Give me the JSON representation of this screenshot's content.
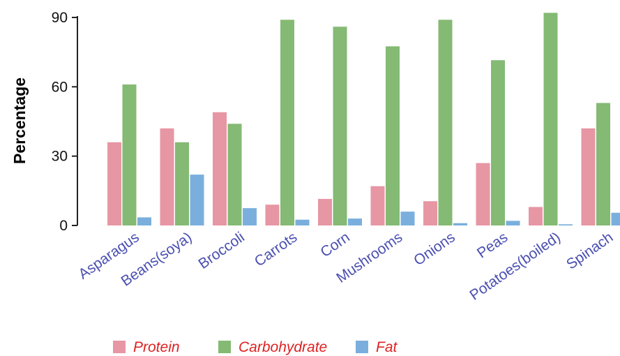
{
  "chart_data": {
    "type": "bar",
    "ylabel": "Percentage",
    "xlabel": "",
    "ylim": [
      0,
      90
    ],
    "yticks": [
      0,
      30,
      60,
      90
    ],
    "categories": [
      "Asparagus",
      "Beans(soya)",
      "Broccoli",
      "Carrots",
      "Corn",
      "Mushrooms",
      "Onions",
      "Peas",
      "Potatoes(boiled)",
      "Spinach"
    ],
    "series": [
      {
        "name": "Protein",
        "color": "#e796a4",
        "values": [
          36,
          42,
          49,
          9,
          11.5,
          17,
          10.5,
          27,
          8,
          42
        ]
      },
      {
        "name": "Carbohydrate",
        "color": "#84ba74",
        "values": [
          61,
          36,
          44,
          89,
          86,
          77.5,
          89,
          71.5,
          92,
          53
        ]
      },
      {
        "name": "Fat",
        "color": "#7aafdd",
        "values": [
          3.5,
          22,
          7.5,
          2.5,
          3,
          6,
          1,
          2,
          0.5,
          5.5
        ]
      }
    ],
    "legend_position": "bottom-left",
    "category_label_color": "#4a4fb0",
    "legend_label_color": "#dd2222",
    "axis_color": "#222222",
    "grid": false
  }
}
